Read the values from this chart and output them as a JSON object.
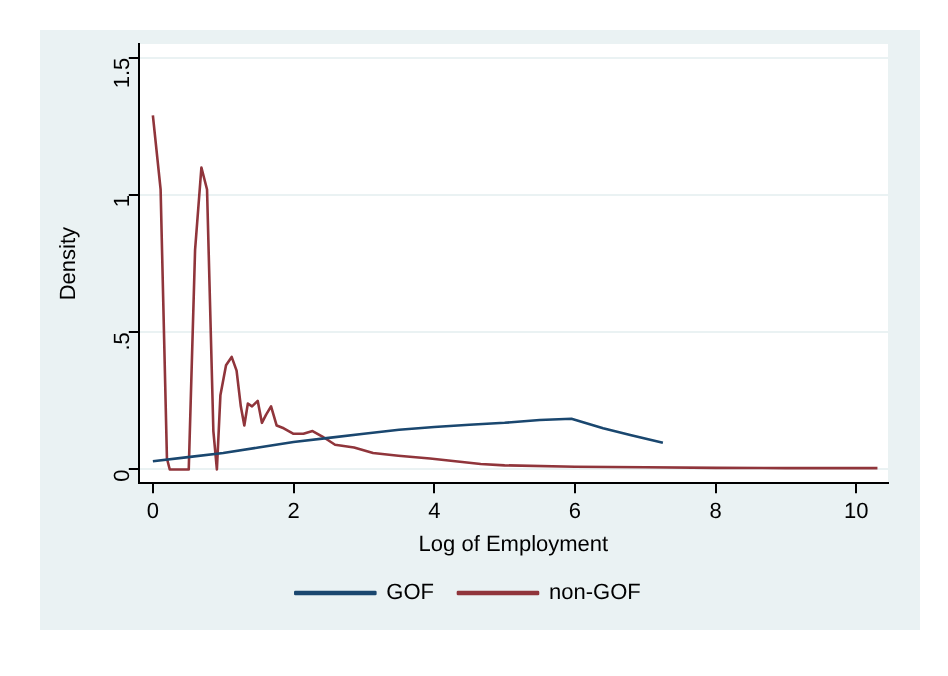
{
  "chart_data": {
    "type": "line",
    "xlabel": "Log of Employment",
    "ylabel": "Density",
    "xlim": [
      -0.2,
      10.45
    ],
    "xticks": [
      0,
      2,
      4,
      6,
      8,
      10
    ],
    "ylim": [
      -0.05,
      1.55
    ],
    "yticks": [
      {
        "value": 0,
        "label": "0"
      },
      {
        "value": 0.5,
        "label": ".5"
      },
      {
        "value": 1,
        "label": "1"
      },
      {
        "value": 1.5,
        "label": "1.5"
      }
    ],
    "grid": "y",
    "legend": "bottom",
    "marker": "none",
    "line_style": "solid",
    "series": [
      {
        "name": "GOF",
        "color": "#1a476f",
        "x": [
          0,
          0.5,
          1,
          1.5,
          2,
          2.5,
          3,
          3.5,
          4,
          4.5,
          5,
          5.5,
          5.95,
          6.4,
          6.8,
          7.25
        ],
        "values": [
          0.03,
          0.045,
          0.06,
          0.08,
          0.1,
          0.115,
          0.13,
          0.145,
          0.155,
          0.163,
          0.17,
          0.18,
          0.185,
          0.15,
          0.125,
          0.097
        ]
      },
      {
        "name": "non-GOF",
        "color": "#90353b",
        "x": [
          0,
          0.11,
          0.2,
          0.24,
          0.51,
          0.6,
          0.69,
          0.77,
          0.86,
          0.91,
          0.96,
          1.04,
          1.12,
          1.19,
          1.25,
          1.3,
          1.35,
          1.41,
          1.49,
          1.55,
          1.61,
          1.68,
          1.76,
          1.86,
          2.0,
          2.14,
          2.27,
          2.41,
          2.59,
          2.86,
          3.13,
          3.49,
          3.94,
          4.66,
          5.0,
          6.0,
          7.0,
          8.0,
          9.0,
          10.3
        ],
        "values": [
          1.29,
          1.02,
          0.04,
          0,
          0,
          0.8,
          1.1,
          1.02,
          0.14,
          0,
          0.27,
          0.38,
          0.41,
          0.36,
          0.23,
          0.16,
          0.24,
          0.23,
          0.25,
          0.17,
          0.2,
          0.23,
          0.16,
          0.15,
          0.13,
          0.13,
          0.14,
          0.12,
          0.09,
          0.08,
          0.06,
          0.05,
          0.04,
          0.02,
          0.015,
          0.01,
          0.008,
          0.006,
          0.005,
          0.005
        ]
      }
    ]
  }
}
